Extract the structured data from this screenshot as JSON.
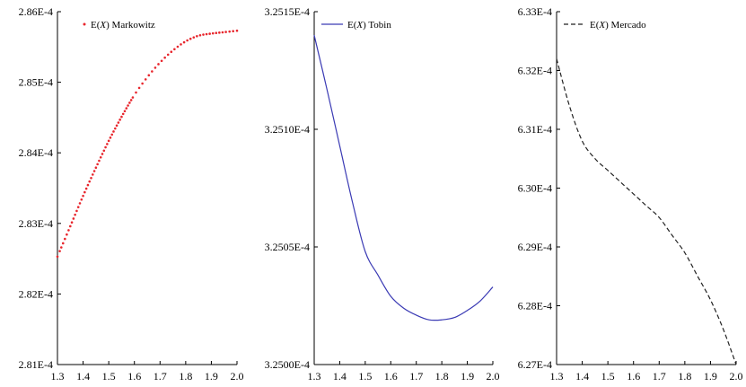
{
  "chart_data": [
    {
      "type": "line",
      "marker_style": "dotted",
      "color": "#e8262d",
      "series": [
        {
          "name": "E(X) Markowitz",
          "x": [
            1.3,
            1.35,
            1.4,
            1.45,
            1.5,
            1.55,
            1.6,
            1.65,
            1.7,
            1.75,
            1.8,
            1.85,
            1.9,
            1.95,
            2.0
          ],
          "y": [
            0.00028253,
            0.00028296,
            0.00028339,
            0.00028379,
            0.00028417,
            0.00028451,
            0.00028482,
            0.00028507,
            0.00028528,
            0.00028545,
            0.00028558,
            0.00028566,
            0.00028569,
            0.00028571,
            0.00028573
          ]
        }
      ],
      "legend": {
        "position": "top-left",
        "text_prefix": "E(",
        "text_var": "X",
        "text_suffix": ") Markowitz"
      },
      "xlim": [
        1.3,
        2.0
      ],
      "ylim": [
        0.000281,
        0.000286
      ],
      "xticks": [
        "1.3",
        "1.4",
        "1.5",
        "1.6",
        "1.7",
        "1.8",
        "1.9",
        "2.0"
      ],
      "yticks": [
        "2.81E-4",
        "2.82E-4",
        "2.83E-4",
        "2.84E-4",
        "2.85E-4",
        "2.86E-4"
      ],
      "grid": false
    },
    {
      "type": "line",
      "line_style": "solid",
      "color": "#3a3ab4",
      "series": [
        {
          "name": "E(X) Tobin",
          "x": [
            1.3,
            1.35,
            1.4,
            1.45,
            1.5,
            1.55,
            1.6,
            1.65,
            1.7,
            1.75,
            1.8,
            1.85,
            1.9,
            1.95,
            2.0
          ],
          "y": [
            0.00032514,
            0.000325117,
            0.000325093,
            0.000325069,
            0.000325048,
            0.000325038,
            0.000325029,
            0.000325024,
            0.000325021,
            0.000325019,
            0.000325019,
            0.00032502,
            0.000325023,
            0.000325027,
            0.000325033
          ]
        }
      ],
      "legend": {
        "position": "top-left",
        "text_prefix": "E(",
        "text_var": "X",
        "text_suffix": ") Tobin"
      },
      "xlim": [
        1.3,
        2.0
      ],
      "ylim": [
        0.000325,
        0.00032515
      ],
      "xticks": [
        "1.3",
        "1.4",
        "1.5",
        "1.6",
        "1.7",
        "1.8",
        "1.9",
        "2.0"
      ],
      "yticks": [
        "3.2500E-4",
        "3.2505E-4",
        "3.2510E-4",
        "3.2515E-4"
      ],
      "grid": false
    },
    {
      "type": "line",
      "line_style": "dashed",
      "color": "#222222",
      "series": [
        {
          "name": "E(X) Mercado",
          "x": [
            1.3,
            1.35,
            1.4,
            1.45,
            1.5,
            1.55,
            1.6,
            1.65,
            1.7,
            1.75,
            1.8,
            1.85,
            1.9,
            1.95,
            2.0
          ],
          "y": [
            0.0006322,
            0.0006314,
            0.0006308,
            0.0006305,
            0.0006303,
            0.0006301,
            0.0006299,
            0.0006297,
            0.0006295,
            0.0006292,
            0.0006289,
            0.0006285,
            0.0006281,
            0.0006276,
            0.000627
          ]
        }
      ],
      "legend": {
        "position": "top-left",
        "text_prefix": "E(",
        "text_var": "X",
        "text_suffix": ") Mercado"
      },
      "xlim": [
        1.3,
        2.0
      ],
      "ylim": [
        0.000627,
        0.000633
      ],
      "xticks": [
        "1.3",
        "1.4",
        "1.5",
        "1.6",
        "1.7",
        "1.8",
        "1.9",
        "2.0"
      ],
      "yticks": [
        "6.27E-4",
        "6.28E-4",
        "6.29E-4",
        "6.30E-4",
        "6.31E-4",
        "6.32E-4",
        "6.33E-4"
      ],
      "grid": false
    }
  ]
}
